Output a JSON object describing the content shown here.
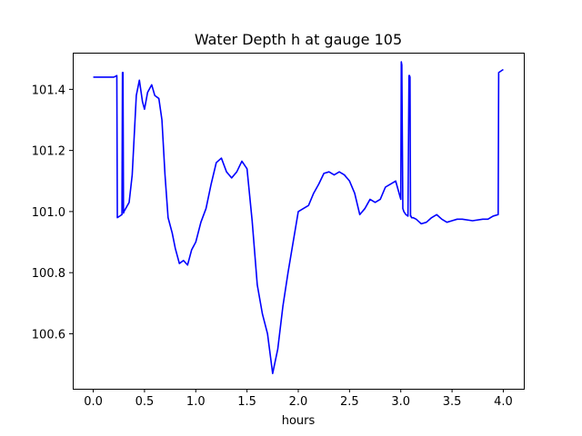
{
  "chart_data": {
    "type": "line",
    "title": "Water Depth h at gauge 105",
    "xlabel": "hours",
    "ylabel": "",
    "xlim": [
      -0.2,
      4.2
    ],
    "ylim": [
      100.42,
      101.52
    ],
    "xticks": [
      0.0,
      0.5,
      1.0,
      1.5,
      2.0,
      2.5,
      3.0,
      3.5,
      4.0
    ],
    "xtick_labels": [
      "0.0",
      "0.5",
      "1.0",
      "1.5",
      "2.0",
      "2.5",
      "3.0",
      "3.5",
      "4.0"
    ],
    "yticks": [
      100.6,
      100.8,
      101.0,
      101.2,
      101.4
    ],
    "ytick_labels": [
      "100.6",
      "100.8",
      "101.0",
      "101.2",
      "101.4"
    ],
    "grid": false,
    "series": [
      {
        "color": "#0000ff",
        "x": [
          0.0,
          0.1,
          0.2,
          0.23,
          0.235,
          0.28,
          0.285,
          0.29,
          0.295,
          0.3,
          0.35,
          0.38,
          0.42,
          0.45,
          0.48,
          0.5,
          0.53,
          0.57,
          0.6,
          0.64,
          0.67,
          0.7,
          0.73,
          0.77,
          0.8,
          0.84,
          0.88,
          0.92,
          0.96,
          1.0,
          1.05,
          1.1,
          1.15,
          1.2,
          1.25,
          1.3,
          1.35,
          1.4,
          1.45,
          1.5,
          1.55,
          1.6,
          1.65,
          1.7,
          1.75,
          1.8,
          1.85,
          1.9,
          1.95,
          2.0,
          2.05,
          2.1,
          2.15,
          2.2,
          2.25,
          2.3,
          2.35,
          2.4,
          2.45,
          2.5,
          2.55,
          2.6,
          2.65,
          2.7,
          2.75,
          2.8,
          2.85,
          2.9,
          2.95,
          3.0,
          3.005,
          3.01,
          3.02,
          3.03,
          3.05,
          3.07,
          3.08,
          3.085,
          3.09,
          3.095,
          3.1,
          3.105,
          3.12,
          3.15,
          3.2,
          3.25,
          3.3,
          3.35,
          3.4,
          3.45,
          3.5,
          3.55,
          3.6,
          3.7,
          3.8,
          3.85,
          3.9,
          3.95,
          3.955,
          4.0
        ],
        "y": [
          101.44,
          101.44,
          101.44,
          101.445,
          100.98,
          100.99,
          101.455,
          101.455,
          100.995,
          101.0,
          101.03,
          101.12,
          101.38,
          101.43,
          101.36,
          101.335,
          101.39,
          101.415,
          101.38,
          101.37,
          101.3,
          101.12,
          100.98,
          100.93,
          100.88,
          100.83,
          100.84,
          100.825,
          100.875,
          100.9,
          100.965,
          101.01,
          101.09,
          101.16,
          101.175,
          101.13,
          101.11,
          101.13,
          101.165,
          101.14,
          100.97,
          100.76,
          100.665,
          100.6,
          100.47,
          100.55,
          100.69,
          100.8,
          100.9,
          101.0,
          101.01,
          101.02,
          101.06,
          101.09,
          101.125,
          101.13,
          101.12,
          101.13,
          101.12,
          101.1,
          101.06,
          100.99,
          101.01,
          101.04,
          101.03,
          101.04,
          101.08,
          101.09,
          101.1,
          101.04,
          101.49,
          101.48,
          101.01,
          101.0,
          100.99,
          100.985,
          101.445,
          101.445,
          101.44,
          100.985,
          100.985,
          100.98,
          100.98,
          100.975,
          100.96,
          100.965,
          100.98,
          100.99,
          100.975,
          100.965,
          100.97,
          100.975,
          100.975,
          100.97,
          100.975,
          100.975,
          100.985,
          100.99,
          101.455,
          101.465
        ]
      }
    ]
  }
}
